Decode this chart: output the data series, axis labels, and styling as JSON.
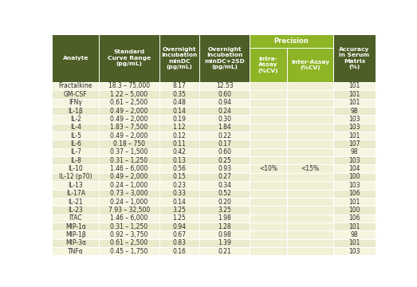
{
  "header_bg": "#4d5e27",
  "header_text_color": "#ffffff",
  "precision_header_bg": "#8db526",
  "row_bg_light": "#f5f5e0",
  "row_bg_dark": "#eaeacc",
  "precision_col_bg": "#f0f0d5",
  "border_color": "#ffffff",
  "columns": [
    "Analyte",
    "Standard\nCurve Range\n(pg/mL)",
    "Overnight\nIncubation\nminDC\n(pg/mL)",
    "Overnight\nIncubation\nminDC+2SD\n(pg/mL)",
    "Intra-\nAssay\n(%CV)",
    "Inter-Assay\n(%CV)",
    "Accuracy\nin Serum\nMatrix\n(%)"
  ],
  "col_props": [
    0.14,
    0.178,
    0.12,
    0.148,
    0.112,
    0.138,
    0.124
  ],
  "rows": [
    [
      "Fractalkine",
      "18.3 – 75,000",
      "8.17",
      "12.53",
      "",
      "",
      "101"
    ],
    [
      "GM-CSF",
      "1.22 – 5,000",
      "0.35",
      "0.60",
      "",
      "",
      "101"
    ],
    [
      "IFNγ",
      "0.61 – 2,500",
      "0.48",
      "0.94",
      "",
      "",
      "101"
    ],
    [
      "IL-1β",
      "0.49 – 2,000",
      "0.14",
      "0.24",
      "",
      "",
      "98"
    ],
    [
      "IL-2",
      "0.49 – 2,000",
      "0.19",
      "0.30",
      "",
      "",
      "103"
    ],
    [
      "IL-4",
      "1.83 – 7,500",
      "1.12",
      "1.84",
      "",
      "",
      "103"
    ],
    [
      "IL-5",
      "0.49 – 2,000",
      "0.12",
      "0.22",
      "",
      "",
      "101"
    ],
    [
      "IL-6",
      "0.18 – 750",
      "0.11",
      "0.17",
      "",
      "",
      "107"
    ],
    [
      "IL-7",
      "0.37 – 1,500",
      "0.42",
      "0.60",
      "",
      "",
      "98"
    ],
    [
      "IL-8",
      "0.31 – 1,250",
      "0.13",
      "0.25",
      "",
      "",
      "103"
    ],
    [
      "IL-10",
      "1.46 – 6,000",
      "0.56",
      "0.93",
      "<10%",
      "<15%",
      "104"
    ],
    [
      "IL-12 (p70)",
      "0.49 – 2,000",
      "0.15",
      "0.27",
      "",
      "",
      "100"
    ],
    [
      "IL-13",
      "0.24 – 1,000",
      "0.23",
      "0.34",
      "",
      "",
      "103"
    ],
    [
      "IL-17A",
      "0.73 – 3,000",
      "0.33",
      "0.52",
      "",
      "",
      "106"
    ],
    [
      "IL-21",
      "0.24 – 1,000",
      "0.14",
      "0.20",
      "",
      "",
      "101"
    ],
    [
      "IL-23",
      "7.93 – 32,500",
      "3.25",
      "3.25",
      "",
      "",
      "100"
    ],
    [
      "ITAC",
      "1.46 – 6,000",
      "1.25",
      "1.98",
      "",
      "",
      "106"
    ],
    [
      "MIP-1α",
      "0.31 – 1,250",
      "0.94",
      "1.28",
      "",
      "",
      "101"
    ],
    [
      "MIP-1β",
      "0.92 – 3,750",
      "0.67",
      "0.98",
      "",
      "",
      "98"
    ],
    [
      "MIP-3α",
      "0.61 – 2,500",
      "0.83",
      "1.39",
      "",
      "",
      "101"
    ],
    [
      "TNFα",
      "0.45 – 1,750",
      "0.16",
      "0.21",
      "",
      "",
      "103"
    ]
  ]
}
